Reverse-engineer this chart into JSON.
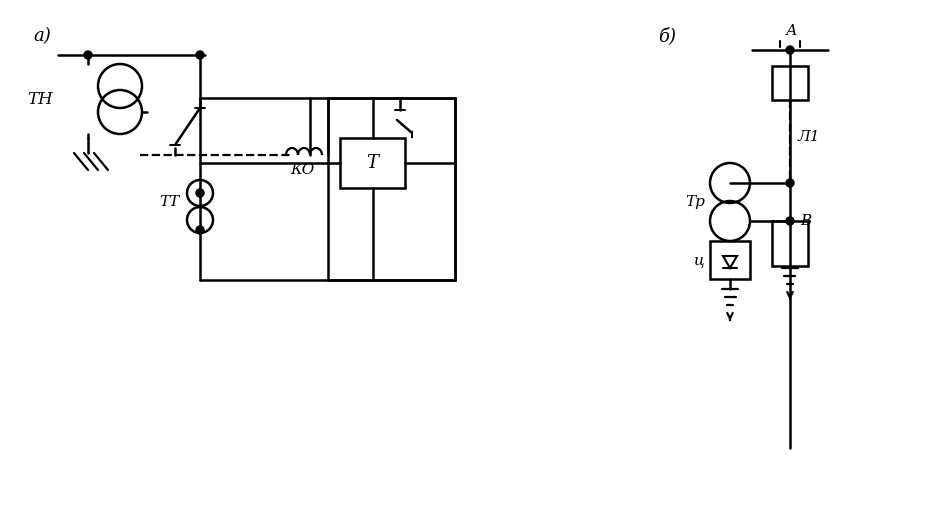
{
  "bg_color": "#ffffff",
  "line_color": "#000000",
  "label_a": "а)",
  "label_b": "б)",
  "label_TH": "ТН",
  "label_TT": "ТТ",
  "label_KO": "КО",
  "label_T": "Т",
  "label_A": "А",
  "label_L1": "Л1",
  "label_Tp": "Тр",
  "label_B": "В",
  "label_Ts": "ц",
  "figsize": [
    9.47,
    5.28
  ],
  "dpi": 100
}
